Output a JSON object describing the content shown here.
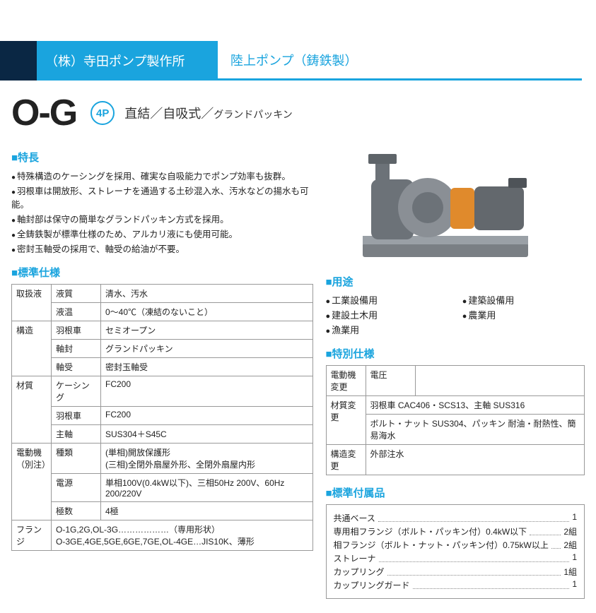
{
  "colors": {
    "accent": "#1aa4de",
    "dark": "#0a2744",
    "border": "#999",
    "text": "#222",
    "orange": "#e08a2c"
  },
  "header": {
    "brand": "（株）寺田ポンプ製作所",
    "subtitle": "陸上ポンプ（鋳鉄製）"
  },
  "title": {
    "model": "O-G",
    "badge": "4P",
    "desc_main": "直結／自吸式／",
    "desc_small": "グランドパッキン"
  },
  "features": {
    "heading": "■特長",
    "items": [
      "特殊構造のケーシングを採用、確実な自吸能力でポンプ効率も抜群。",
      "羽根車は開放形、ストレーナを通過する土砂混入水、汚水などの揚水も可能。",
      "軸封部は保守の簡単なグランドパッキン方式を採用。",
      "全鋳鉄製が標準仕様のため、アルカリ液にも使用可能。",
      "密封玉軸受の採用で、軸受の給油が不要。"
    ]
  },
  "spec": {
    "heading": "■標準仕様",
    "rows": [
      {
        "g": "取扱液",
        "k": "液質",
        "v": "清水、汚水"
      },
      {
        "g": "",
        "k": "液温",
        "v": "0〜40℃（凍結のないこと）"
      },
      {
        "g": "構造",
        "k": "羽根車",
        "v": "セミオープン"
      },
      {
        "g": "",
        "k": "軸封",
        "v": "グランドパッキン"
      },
      {
        "g": "",
        "k": "軸受",
        "v": "密封玉軸受"
      },
      {
        "g": "材質",
        "k": "ケーシング",
        "v": "FC200"
      },
      {
        "g": "",
        "k": "羽根車",
        "v": "FC200"
      },
      {
        "g": "",
        "k": "主軸",
        "v": "SUS304＋S45C"
      },
      {
        "g": "電動機（別注）",
        "k": "種類",
        "v": "(単相)開放保護形\n(三相)全閉外扇屋外形、全閉外扇屋内形"
      },
      {
        "g": "",
        "k": "電源",
        "v": "単相100V(0.4kW以下)、三相50Hz 200V、60Hz 200/220V"
      },
      {
        "g": "",
        "k": "極数",
        "v": "4極"
      },
      {
        "g": "フランジ",
        "k": "",
        "v": "O-1G,2G,OL-3G………………（専用形状）\nO-3GE,4GE,5GE,6GE,7GE,OL-4GE…JIS10K、薄形"
      }
    ]
  },
  "uses": {
    "heading": "■用途",
    "items": [
      "工業設備用",
      "建築設備用",
      "建設土木用",
      "農業用",
      "漁業用"
    ]
  },
  "special": {
    "heading": "■特別仕様",
    "rows": [
      {
        "k1": "電動機変更",
        "k2": "電圧",
        "v": ""
      },
      {
        "k1": "材質変更",
        "k2": "",
        "v": "羽根車 CAC406・SCS13、主軸 SUS316"
      },
      {
        "k1": "",
        "k2": "",
        "v": "ボルト・ナット SUS304、パッキン 耐油・耐熱性、簡易海水"
      },
      {
        "k1": "構造変更",
        "k2": "",
        "v": "外部注水"
      }
    ]
  },
  "accessories": {
    "heading": "■標準付属品",
    "items": [
      {
        "label": "共通ベース",
        "qty": "1"
      },
      {
        "label": "専用相フランジ（ボルト・パッキン付）0.4kW以下",
        "qty": "2組"
      },
      {
        "label": "相フランジ（ボルト・ナット・パッキン付）0.75kW以上",
        "qty": "2組"
      },
      {
        "label": "ストレーナ",
        "qty": "1"
      },
      {
        "label": "カップリング",
        "qty": "1組"
      },
      {
        "label": "カップリングガード",
        "qty": "1"
      }
    ]
  }
}
